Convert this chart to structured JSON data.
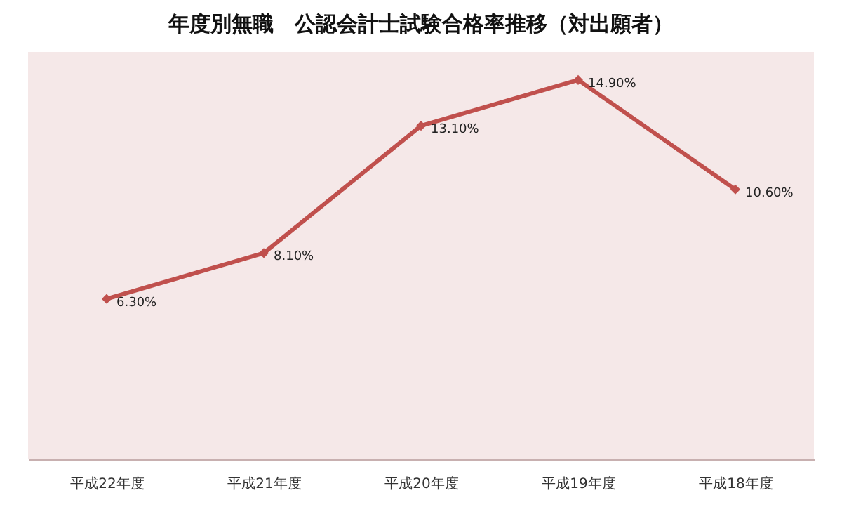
{
  "chart_data": {
    "type": "line",
    "title": "年度別無職　公認会計士試験合格率推移（対出願者）",
    "categories": [
      "平成22年度",
      "平成21年度",
      "平成20年度",
      "平成19年度",
      "平成18年度"
    ],
    "series": [
      {
        "color": "#c0504d",
        "values": [
          6.3,
          8.1,
          13.1,
          14.9,
          10.6
        ],
        "value_labels": [
          "6.30%",
          "8.10%",
          "13.10%",
          "14.90%",
          "10.60%"
        ]
      }
    ],
    "ylim": [
      0,
      16
    ],
    "tick_labels": "x",
    "marker": "diamond",
    "line_style": "solid"
  }
}
